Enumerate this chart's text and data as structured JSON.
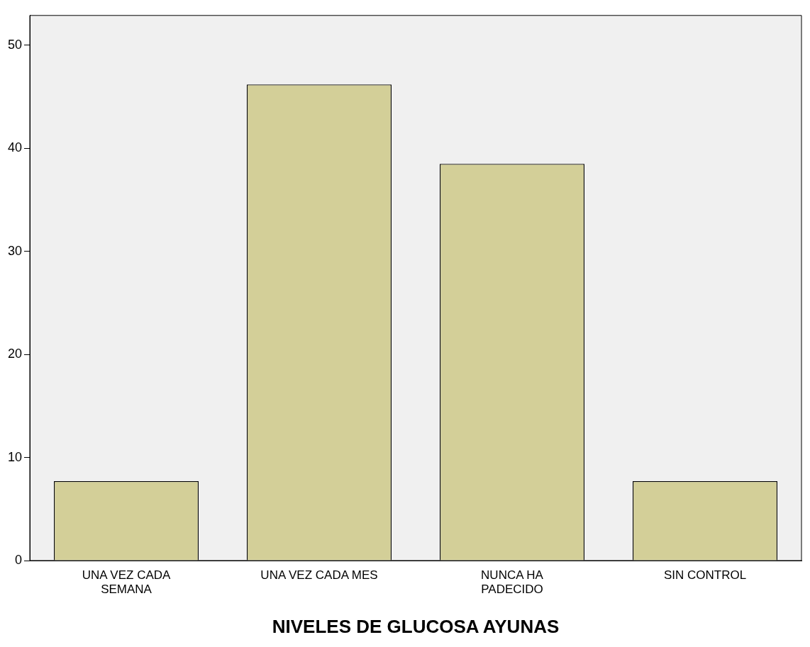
{
  "chart_data": {
    "type": "bar",
    "xlabel": "NIVELES DE GLUCOSA AYUNAS",
    "categories": [
      "UNA VEZ CADA SEMANA",
      "UNA VEZ CADA MES",
      "NUNCA HA PADECIDO",
      "SIN CONTROL"
    ],
    "values": [
      7.7,
      46.2,
      38.5,
      7.7
    ],
    "color": "#d3cf98",
    "ylim": [
      0,
      52.9
    ],
    "yticks": [
      0,
      10,
      20,
      30,
      40,
      50
    ],
    "grid": false,
    "legend": false
  }
}
